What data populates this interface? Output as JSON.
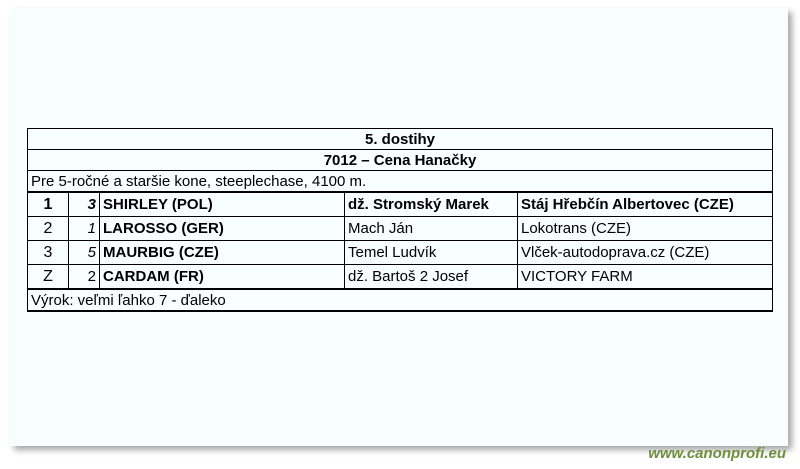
{
  "race": {
    "title": "5. dostihy",
    "name": "7012 – Cena Hanačky",
    "conditions": "Pre 5-ročné a staršie kone, steeplechase, 4100 m.",
    "results": [
      {
        "place": "1",
        "number": "3",
        "horse": "SHIRLEY (POL)",
        "jockey": "dž. Stromský Marek",
        "owner": "Stáj Hřebčín Albertovec (CZE)",
        "bold": true
      },
      {
        "place": "2",
        "number": "1",
        "horse": "LAROSSO (GER)",
        "jockey": "Mach Ján",
        "owner": "Lokotrans (CZE)"
      },
      {
        "place": "3",
        "number": "5",
        "horse": "MAURBIG (CZE)",
        "jockey": "Temel Ludvík",
        "owner": "Vlček-autodoprava.cz (CZE)"
      },
      {
        "place": "Z",
        "number": "2",
        "horse": "CARDAM (FR)",
        "jockey": "dž. Bartoš 2 Josef",
        "owner": "VICTORY FARM"
      }
    ],
    "verdict": "Výrok: veľmi ľahko 7 - ďaleko"
  },
  "watermark": "www.canonprofi.eu"
}
